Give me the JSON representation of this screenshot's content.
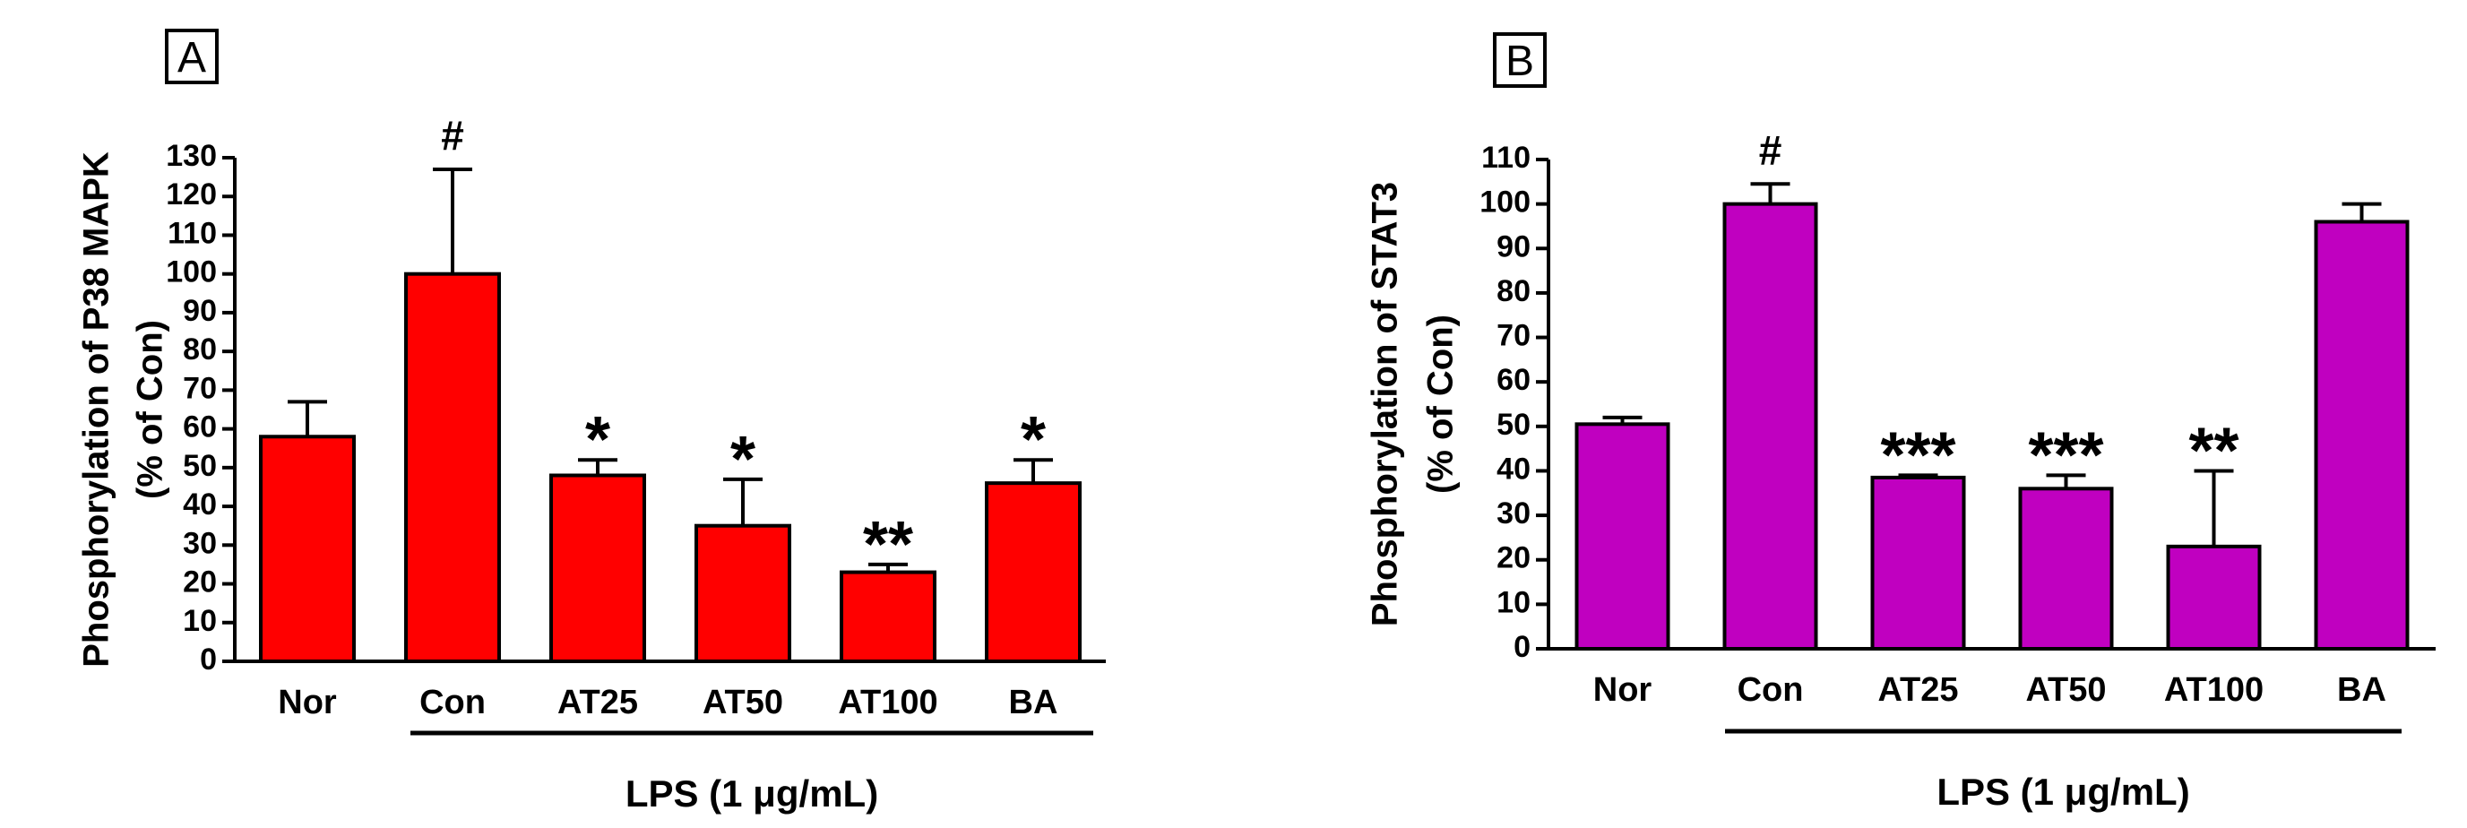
{
  "chart_data": [
    {
      "type": "bar",
      "panel": "A",
      "title": "",
      "ylabel_lines": [
        "Phosphorylation of P38 MAPK",
        "(% of Con)"
      ],
      "xlabel": "",
      "group_label": "LPS (1 μg/mL)",
      "categories": [
        "Nor",
        "Con",
        "AT25",
        "AT50",
        "AT100",
        "BA"
      ],
      "values": [
        58,
        100,
        48,
        35,
        23,
        46
      ],
      "errors": [
        9,
        27,
        4,
        12,
        2,
        6
      ],
      "significance": [
        "",
        "#",
        "*",
        "*",
        "**",
        "*"
      ],
      "ylim": [
        0,
        130
      ],
      "yticks": [
        "0",
        "10",
        "20",
        "30",
        "40",
        "50",
        "60",
        "70",
        "80",
        "90",
        "100",
        "110",
        "120",
        "130"
      ],
      "color": "#ff0000",
      "grid": false
    },
    {
      "type": "bar",
      "panel": "B",
      "title": "",
      "ylabel_lines": [
        "Phosphorylation of STAT3",
        "(% of Con)"
      ],
      "xlabel": "",
      "group_label": "LPS (1 μg/mL)",
      "categories": [
        "Nor",
        "Con",
        "AT25",
        "AT50",
        "AT100",
        "BA"
      ],
      "values": [
        50.5,
        100,
        38.5,
        36,
        23,
        96
      ],
      "errors": [
        1.5,
        4.5,
        0.5,
        3,
        17,
        4
      ],
      "significance": [
        "",
        "#",
        "***",
        "***",
        "**",
        ""
      ],
      "ylim": [
        0,
        110
      ],
      "yticks": [
        "0",
        "10",
        "20",
        "30",
        "40",
        "50",
        "60",
        "70",
        "80",
        "90",
        "100",
        "110"
      ],
      "color": "#c000c0",
      "grid": false
    }
  ]
}
